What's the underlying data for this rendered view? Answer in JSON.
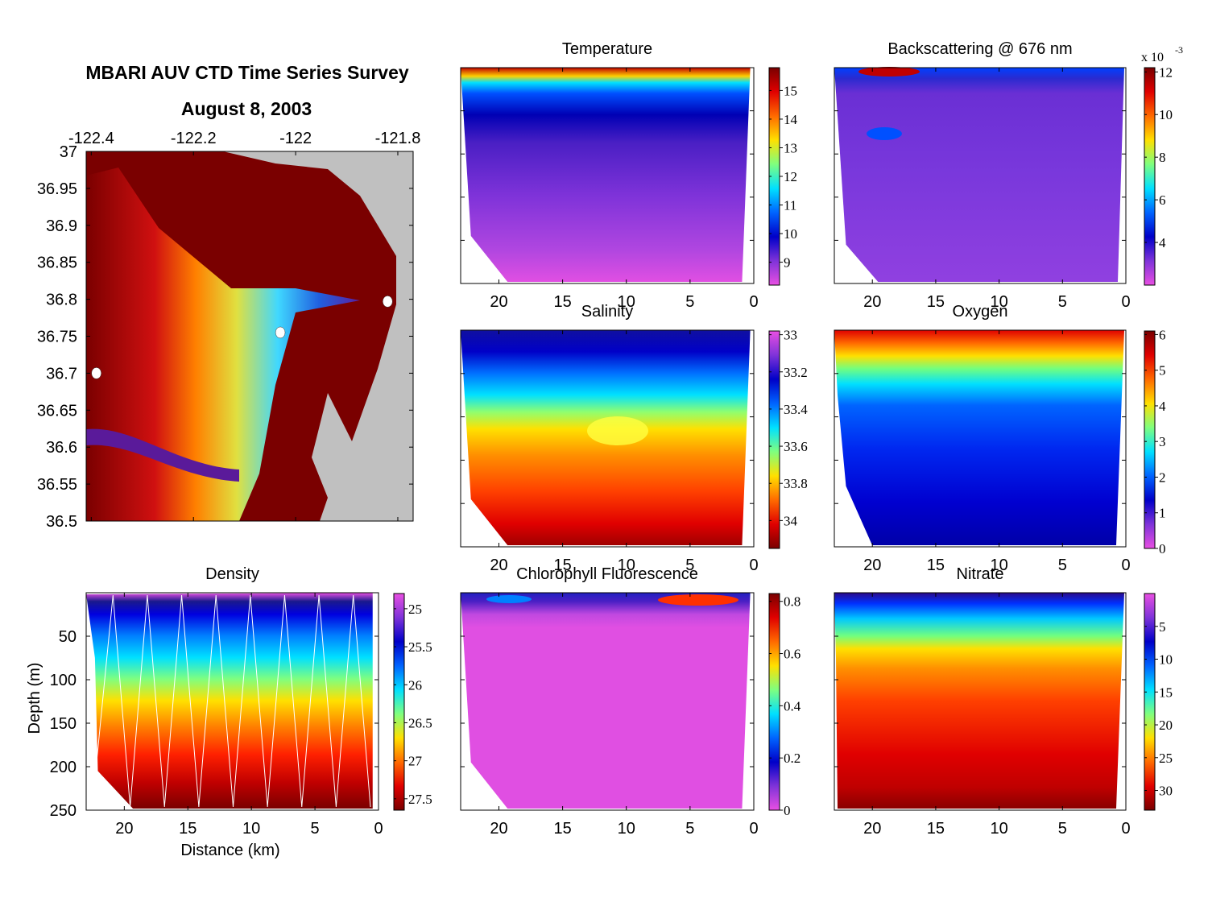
{
  "figure": {
    "title_line1": "MBARI AUV CTD Time Series Survey",
    "title_line2": "August 8, 2003"
  },
  "colors": {
    "map_land": "#c0c0c0",
    "map_shelf": "#7a0000",
    "track_lines": "#ffffff",
    "jet_scale": [
      "#e84fe2",
      "#7f33d9",
      "#0000c8",
      "#0064ff",
      "#00e0ff",
      "#7fff7f",
      "#ffe000",
      "#ff6a00",
      "#e00000",
      "#7a0000"
    ]
  },
  "chart_data": [
    {
      "id": "map",
      "type": "heatmap",
      "title": "",
      "x_ticks": [
        "-122.4",
        "-122.2",
        "-122",
        "-121.8"
      ],
      "x_values": [
        -122.4,
        -122.2,
        -122.0,
        -121.8
      ],
      "y_ticks": [
        "37",
        "36.95",
        "36.9",
        "36.85",
        "36.8",
        "36.75",
        "36.7",
        "36.65",
        "36.6",
        "36.55",
        "36.5"
      ],
      "y_values": [
        37,
        36.95,
        36.9,
        36.85,
        36.8,
        36.75,
        36.7,
        36.65,
        36.6,
        36.55,
        36.5
      ],
      "xlim": [
        -122.41,
        -121.77
      ],
      "ylim": [
        36.5,
        37.0
      ],
      "stations": [
        {
          "lon": -122.39,
          "lat": 36.7
        },
        {
          "lon": -122.03,
          "lat": 36.755
        },
        {
          "lon": -121.82,
          "lat": 36.797
        }
      ]
    },
    {
      "id": "temperature",
      "type": "heatmap",
      "title": "Temperature",
      "colorbar_ticks": [
        "9",
        "10",
        "11",
        "12",
        "13",
        "14",
        "15"
      ],
      "colorbar_values": [
        9,
        10,
        11,
        12,
        13,
        14,
        15
      ],
      "colorbar_range": [
        8.2,
        15.8
      ],
      "reversed": false,
      "multiplier": "",
      "x_ticks": [
        "20",
        "15",
        "10",
        "5",
        "0"
      ],
      "x_values": [
        20,
        15,
        10,
        5,
        0
      ],
      "xlim": [
        23,
        0
      ],
      "ylim": [
        250,
        0
      ]
    },
    {
      "id": "backscattering",
      "type": "heatmap",
      "title": "Backscattering @ 676 nm",
      "colorbar_ticks": [
        "4",
        "6",
        "8",
        "10",
        "12"
      ],
      "colorbar_values": [
        4,
        6,
        8,
        10,
        12
      ],
      "colorbar_range": [
        2,
        12.2
      ],
      "reversed": false,
      "multiplier": "x 10",
      "multiplier_exp": "-3",
      "x_ticks": [
        "20",
        "15",
        "10",
        "5",
        "0"
      ],
      "x_values": [
        20,
        15,
        10,
        5,
        0
      ],
      "xlim": [
        23,
        0
      ],
      "ylim": [
        250,
        0
      ]
    },
    {
      "id": "salinity",
      "type": "heatmap",
      "title": "Salinity",
      "colorbar_ticks": [
        "33",
        "33.2",
        "33.4",
        "33.6",
        "33.8",
        "34"
      ],
      "colorbar_values": [
        33,
        33.2,
        33.4,
        33.6,
        33.8,
        34
      ],
      "colorbar_range": [
        32.98,
        34.15
      ],
      "reversed": true,
      "multiplier": "",
      "x_ticks": [
        "20",
        "15",
        "10",
        "5",
        "0"
      ],
      "x_values": [
        20,
        15,
        10,
        5,
        0
      ],
      "xlim": [
        23,
        0
      ],
      "ylim": [
        250,
        0
      ]
    },
    {
      "id": "oxygen",
      "type": "heatmap",
      "title": "Oxygen",
      "colorbar_ticks": [
        "0",
        "1",
        "2",
        "3",
        "4",
        "5",
        "6"
      ],
      "colorbar_values": [
        0,
        1,
        2,
        3,
        4,
        5,
        6
      ],
      "colorbar_range": [
        0,
        6.1
      ],
      "reversed": false,
      "multiplier": "",
      "x_ticks": [
        "20",
        "15",
        "10",
        "5",
        "0"
      ],
      "x_values": [
        20,
        15,
        10,
        5,
        0
      ],
      "xlim": [
        23,
        0
      ],
      "ylim": [
        250,
        0
      ]
    },
    {
      "id": "density",
      "type": "heatmap",
      "title": "Density",
      "colorbar_ticks": [
        "25",
        "25.5",
        "26",
        "26.5",
        "27",
        "27.5"
      ],
      "colorbar_values": [
        25,
        25.5,
        26,
        26.5,
        27,
        27.5
      ],
      "colorbar_range": [
        24.8,
        27.65
      ],
      "reversed": true,
      "multiplier": "",
      "xlabel": "Distance (km)",
      "ylabel": "Depth (m)",
      "x_ticks": [
        "20",
        "15",
        "10",
        "5",
        "0"
      ],
      "x_values": [
        20,
        15,
        10,
        5,
        0
      ],
      "y_ticks": [
        "50",
        "100",
        "150",
        "200",
        "250"
      ],
      "y_values": [
        50,
        100,
        150,
        200,
        250
      ],
      "xlim": [
        23,
        0
      ],
      "ylim": [
        250,
        0
      ]
    },
    {
      "id": "chlorophyll",
      "type": "heatmap",
      "title": "Chlorophyll Fluorescence",
      "colorbar_ticks": [
        "0",
        "0.2",
        "0.4",
        "0.6",
        "0.8"
      ],
      "colorbar_values": [
        0,
        0.2,
        0.4,
        0.6,
        0.8
      ],
      "colorbar_range": [
        0,
        0.83
      ],
      "reversed": false,
      "multiplier": "",
      "x_ticks": [
        "20",
        "15",
        "10",
        "5",
        "0"
      ],
      "x_values": [
        20,
        15,
        10,
        5,
        0
      ],
      "xlim": [
        23,
        0
      ],
      "ylim": [
        250,
        0
      ]
    },
    {
      "id": "nitrate",
      "type": "heatmap",
      "title": "Nitrate",
      "colorbar_ticks": [
        "5",
        "10",
        "15",
        "20",
        "25",
        "30"
      ],
      "colorbar_values": [
        5,
        10,
        15,
        20,
        25,
        30
      ],
      "colorbar_range": [
        0,
        33
      ],
      "reversed": true,
      "multiplier": "",
      "x_ticks": [
        "20",
        "15",
        "10",
        "5",
        "0"
      ],
      "x_values": [
        20,
        15,
        10,
        5,
        0
      ],
      "xlim": [
        23,
        0
      ],
      "ylim": [
        250,
        0
      ]
    }
  ]
}
